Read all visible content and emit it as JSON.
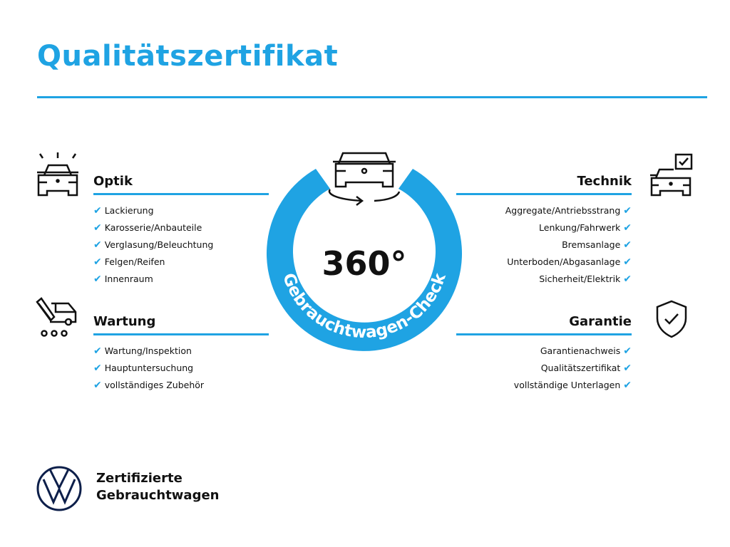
{
  "title": "Qualitätszertifikat",
  "center": {
    "number": "360°",
    "ring_text": "Gebrauchtwagen-Check"
  },
  "sections": {
    "optik": {
      "heading": "Optik",
      "items": [
        "Lackierung",
        "Karosserie/Anbauteile",
        "Verglasung/Beleuchtung",
        "Felgen/Reifen",
        "Innenraum"
      ]
    },
    "wartung": {
      "heading": "Wartung",
      "items": [
        "Wartung/Inspektion",
        "Hauptuntersuchung",
        "vollständiges Zubehör"
      ]
    },
    "technik": {
      "heading": "Technik",
      "items": [
        "Aggregate/Antriebsstrang",
        "Lenkung/Fahrwerk",
        "Bremsanlage",
        "Unterboden/Abgasanlage",
        "Sicherheit/Elektrik"
      ]
    },
    "garantie": {
      "heading": "Garantie",
      "items": [
        "Garantienachweis",
        "Qualitätszertifikat",
        "vollständige Unterlagen"
      ]
    }
  },
  "check_mark": "✔",
  "footer": {
    "line1": "Zertifizierte",
    "line2": "Gebrauchtwagen"
  },
  "colors": {
    "accent": "#1fa3e3",
    "text": "#111111"
  }
}
